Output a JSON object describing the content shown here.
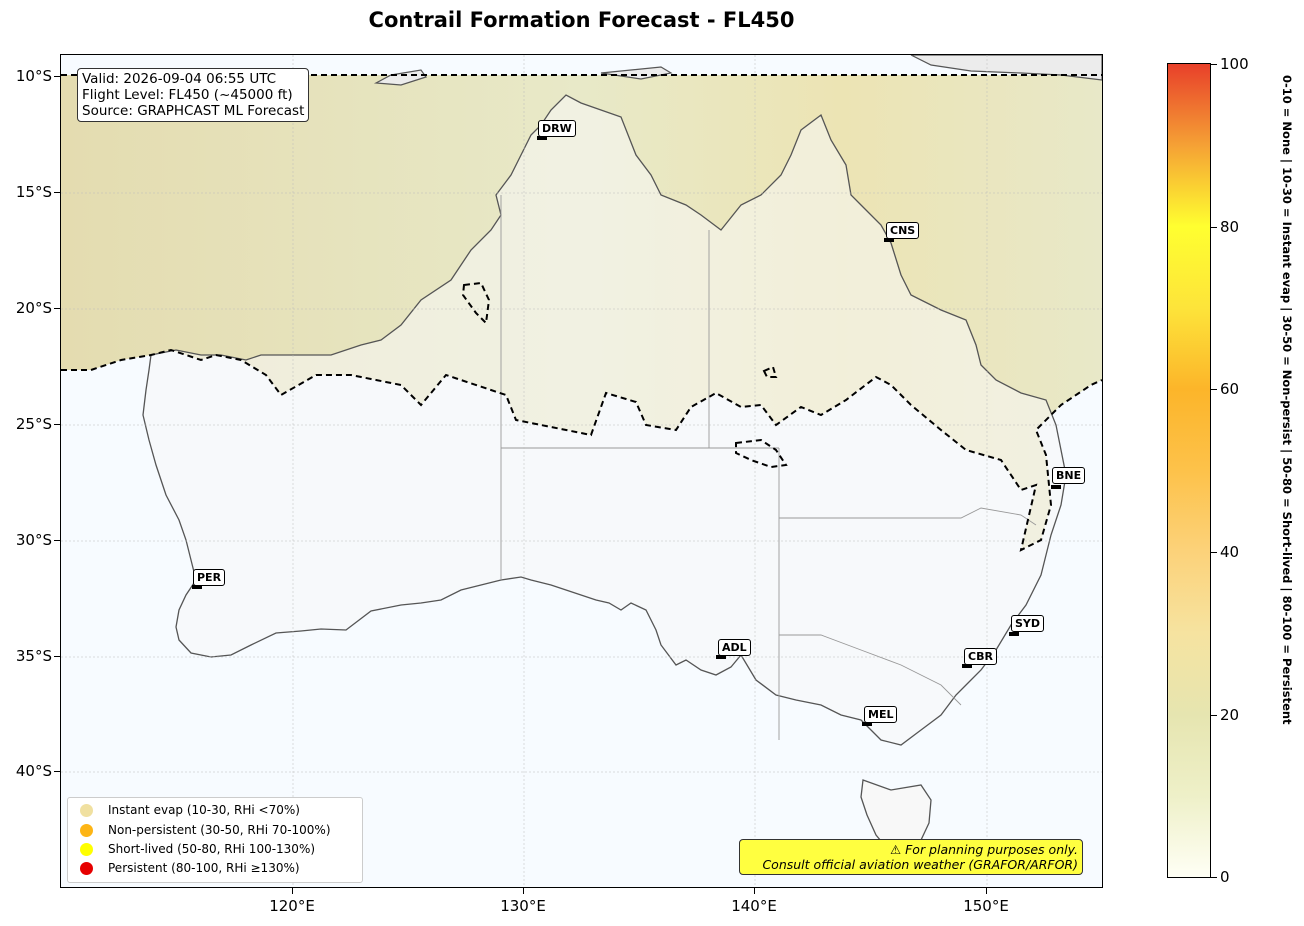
{
  "title": "Contrail Formation Forecast - FL450",
  "info": {
    "valid": "Valid: 2026-09-04 06:55 UTC",
    "flight_level": "Flight Level: FL450 (~45000 ft)",
    "source": "Source: GRAPHCAST ML Forecast"
  },
  "axes": {
    "lat_labels": [
      "10°S",
      "15°S",
      "20°S",
      "25°S",
      "30°S",
      "35°S",
      "40°S"
    ],
    "lon_labels": [
      "120°E",
      "130°E",
      "140°E",
      "150°E"
    ]
  },
  "cities": [
    {
      "code": "DRW"
    },
    {
      "code": "CNS"
    },
    {
      "code": "BNE"
    },
    {
      "code": "PER"
    },
    {
      "code": "SYD"
    },
    {
      "code": "ADL"
    },
    {
      "code": "CBR"
    },
    {
      "code": "MEL"
    }
  ],
  "legend": {
    "items": [
      {
        "label": "Instant evap (10-30, RHi <70%)",
        "color": "#f0e0a0"
      },
      {
        "label": "Non-persistent (30-50, RHi 70-100%)",
        "color": "#fdb515"
      },
      {
        "label": "Short-lived (50-80, RHi 100-130%)",
        "color": "#ffff00"
      },
      {
        "label": "Persistent (80-100, RHi ≥130%)",
        "color": "#e60000"
      }
    ]
  },
  "disclaimer": {
    "line1": "⚠ For planning purposes only.",
    "line2": "Consult official aviation weather (GRAFOR/ARFOR)"
  },
  "colorbar": {
    "ticks": [
      "0",
      "20",
      "40",
      "60",
      "80",
      "100"
    ],
    "caption": "0-10 = None  |  10-30 = Instant evap  |  30-50 = Non-persist  |  50-80 = Short-lived  |  80-100 = Persistent",
    "range": [
      0,
      100
    ]
  },
  "colors": {
    "background_sea": "#f7fbff",
    "land": "#f8f8f8",
    "contrail_zone": "#e6e6c0",
    "coastline": "#555555"
  }
}
